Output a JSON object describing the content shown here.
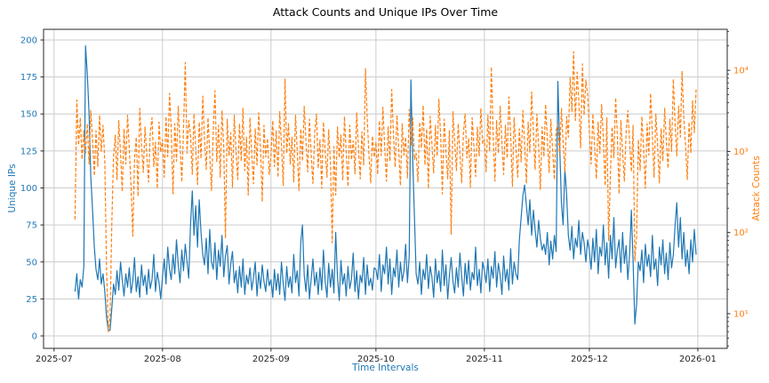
{
  "chart_data": {
    "type": "line",
    "title": "Attack Counts and Unique IPs Over Time",
    "xlabel": "Time Intervals",
    "grid": true,
    "legend": "none",
    "x_start_date": "2025-07-07",
    "x_step_days": 0.5,
    "x_axis": {
      "range_days": [
        -9,
        186.4
      ],
      "ticks": [
        {
          "day": -6,
          "label": "2025-07"
        },
        {
          "day": 25,
          "label": "2025-08"
        },
        {
          "day": 56,
          "label": "2025-09"
        },
        {
          "day": 86,
          "label": "2025-10"
        },
        {
          "day": 117,
          "label": "2025-11"
        },
        {
          "day": 147,
          "label": "2025-12"
        },
        {
          "day": 178,
          "label": "2026-01"
        }
      ]
    },
    "left_axis": {
      "label": "Unique IPs",
      "scale": "linear",
      "range": [
        -8.4,
        207.2
      ],
      "ticks": [
        0,
        25,
        50,
        75,
        100,
        125,
        150,
        175,
        200
      ],
      "color": "#1f77b4"
    },
    "right_axis": {
      "label": "Attack Counts",
      "scale": "log",
      "range": [
        3.74,
        32000
      ],
      "ticks": [
        {
          "value": 10,
          "label": "10¹"
        },
        {
          "value": 100,
          "label": "10²"
        },
        {
          "value": 1000,
          "label": "10³"
        },
        {
          "value": 10000,
          "label": "10⁴"
        }
      ],
      "color": "#ff7f0e"
    },
    "series": [
      {
        "name": "Unique IPs",
        "axis": "left",
        "line_style": "solid",
        "color": "#1f77b4",
        "values": [
          30,
          42,
          25,
          38,
          33,
          47,
          196,
          177,
          150,
          108,
          85,
          60,
          45,
          38,
          52,
          35,
          42,
          30,
          13,
          0,
          2,
          18,
          35,
          28,
          44,
          31,
          50,
          38,
          27,
          42,
          33,
          46,
          29,
          37,
          53,
          30,
          40,
          26,
          48,
          34,
          41,
          28,
          45,
          32,
          38,
          55,
          30,
          43,
          36,
          25,
          40,
          52,
          35,
          60,
          45,
          38,
          55,
          42,
          65,
          48,
          36,
          58,
          44,
          62,
          50,
          39,
          75,
          98,
          68,
          88,
          60,
          92,
          70,
          55,
          48,
          66,
          42,
          72,
          50,
          45,
          63,
          38,
          58,
          47,
          68,
          40,
          54,
          61,
          35,
          49,
          57,
          36,
          44,
          29,
          47,
          33,
          52,
          28,
          41,
          35,
          46,
          31,
          39,
          50,
          27,
          43,
          32,
          48,
          37,
          30,
          45,
          34,
          38,
          26,
          45,
          31,
          42,
          28,
          50,
          35,
          24,
          47,
          33,
          40,
          29,
          55,
          36,
          44,
          27,
          63,
          75,
          41,
          30,
          48,
          25,
          39,
          52,
          34,
          43,
          28,
          46,
          31,
          58,
          37,
          26,
          49,
          33,
          45,
          29,
          70,
          40,
          24,
          51,
          35,
          42,
          27,
          47,
          32,
          38,
          56,
          30,
          44,
          25,
          41,
          36,
          53,
          28,
          48,
          34,
          39,
          31,
          46,
          45,
          38,
          55,
          30,
          48,
          42,
          60,
          35,
          52,
          28,
          46,
          40,
          58,
          33,
          50,
          37,
          44,
          62,
          36,
          54,
          173,
          120,
          80,
          42,
          35,
          50,
          28,
          45,
          38,
          55,
          32,
          47,
          40,
          26,
          52,
          36,
          44,
          30,
          58,
          34,
          48,
          25,
          41,
          53,
          37,
          29,
          46,
          33,
          56,
          40,
          27,
          49,
          35,
          51,
          31,
          43,
          38,
          60,
          34,
          45,
          29,
          50,
          44,
          36,
          52,
          30,
          47,
          39,
          57,
          33,
          49,
          41,
          28,
          54,
          37,
          45,
          31,
          59,
          35,
          50,
          42,
          38,
          65,
          80,
          95,
          102,
          88,
          75,
          92,
          68,
          85,
          72,
          60,
          78,
          66,
          58,
          62,
          55,
          70,
          48,
          64,
          52,
          68,
          57,
          172,
          130,
          90,
          75,
          113,
          95,
          68,
          58,
          74,
          52,
          66,
          60,
          78,
          55,
          70,
          63,
          50,
          65,
          58,
          45,
          66,
          50,
          72,
          42,
          60,
          54,
          75,
          48,
          63,
          39,
          68,
          52,
          80,
          46,
          58,
          65,
          43,
          70,
          49,
          61,
          38,
          55,
          85,
          51,
          8,
          22,
          50,
          44,
          58,
          36,
          62,
          47,
          55,
          40,
          68,
          45,
          52,
          34,
          60,
          48,
          65,
          42,
          56,
          38,
          63,
          46,
          55,
          75,
          90,
          60,
          80,
          52,
          70,
          47,
          58,
          42,
          65,
          50,
          72,
          55
        ]
      },
      {
        "name": "Attack Counts",
        "axis": "right",
        "line_style": "dashed",
        "color": "#ff7f0e",
        "values": [
          145,
          4300,
          1200,
          2600,
          800,
          1800,
          950,
          2200,
          700,
          3200,
          1400,
          500,
          1800,
          650,
          2800,
          1000,
          2100,
          750,
          40,
          6,
          9,
          120,
          850,
          1600,
          450,
          2400,
          950,
          320,
          1900,
          700,
          2800,
          1100,
          380,
          90,
          800,
          1500,
          280,
          3400,
          1200,
          550,
          2000,
          900,
          420,
          1700,
          2600,
          650,
          1300,
          350,
          2300,
          980,
          1400,
          480,
          2700,
          860,
          5200,
          1900,
          300,
          2200,
          760,
          3600,
          1250,
          420,
          1800,
          12500,
          950,
          2400,
          1600,
          520,
          2900,
          1050,
          390,
          2300,
          820,
          4800,
          1400,
          600,
          2600,
          950,
          330,
          1850,
          5600,
          750,
          2100,
          480,
          3200,
          1150,
          85,
          2500,
          880,
          1700,
          360,
          2800,
          1000,
          450,
          2200,
          760,
          3400,
          580,
          1500,
          290,
          2600,
          920,
          400,
          1900,
          680,
          3000,
          1100,
          240,
          2100,
          850,
          1450,
          520,
          900,
          2400,
          650,
          1800,
          480,
          3100,
          1200,
          380,
          7800,
          950,
          2200,
          700,
          1500,
          420,
          2800,
          1050,
          330,
          1900,
          760,
          3600,
          1300,
          560,
          2500,
          880,
          400,
          1700,
          2900,
          620,
          1400,
          350,
          2300,
          1000,
          480,
          1850,
          720,
          75,
          1150,
          290,
          2000,
          840,
          1600,
          440,
          2700,
          980,
          370,
          2100,
          790,
          1350,
          530,
          3000,
          1100,
          460,
          1750,
          680,
          10500,
          2600,
          920,
          410,
          1550,
          850,
          1300,
          520,
          2400,
          890,
          3500,
          1150,
          430,
          2000,
          760,
          5800,
          1600,
          640,
          2800,
          1050,
          380,
          2200,
          900,
          1500,
          470,
          3300,
          1200,
          2600,
          800,
          950,
          420,
          2300,
          1100,
          3700,
          680,
          1900,
          350,
          2700,
          1250,
          540,
          2100,
          870,
          4400,
          1500,
          300,
          2500,
          1000,
          460,
          1800,
          95,
          3100,
          1350,
          580,
          2200,
          940,
          410,
          1700,
          2900,
          830,
          1450,
          360,
          2600,
          1150,
          490,
          2000,
          880,
          3400,
          1250,
          1400,
          560,
          2800,
          1000,
          11000,
          1650,
          430,
          2400,
          950,
          3600,
          1300,
          520,
          2100,
          820,
          4700,
          1550,
          370,
          2600,
          1100,
          480,
          1900,
          740,
          3200,
          1250,
          400,
          2300,
          980,
          5400,
          1700,
          600,
          2900,
          1150,
          340,
          2000,
          860,
          3800,
          1400,
          550,
          2500,
          1050,
          450,
          1800,
          2200,
          900,
          3400,
          1300,
          560,
          2700,
          1500,
          8200,
          3100,
          17000,
          2400,
          9500,
          4200,
          1100,
          12000,
          2800,
          7600,
          5100,
          1800,
          700,
          2900,
          1200,
          460,
          2300,
          950,
          3800,
          1450,
          380,
          2600,
          80,
          520,
          2000,
          840,
          4600,
          1600,
          300,
          2400,
          980,
          430,
          1750,
          3200,
          1300,
          560,
          2100,
          45,
          90,
          1400,
          580,
          2700,
          1100,
          350,
          2200,
          900,
          5200,
          1650,
          480,
          2900,
          1200,
          410,
          1900,
          760,
          3400,
          1350,
          620,
          2500,
          1000,
          7800,
          2100,
          880,
          3600,
          1500,
          9800,
          2600,
          1150,
          450,
          2300,
          950,
          4200,
          1700,
          5800
        ]
      }
    ]
  },
  "style_colors": {
    "background": "#ffffff",
    "grid": "#cccccc",
    "spine": "#262626",
    "tick": "#262626",
    "x_tick_label": "#262626"
  }
}
